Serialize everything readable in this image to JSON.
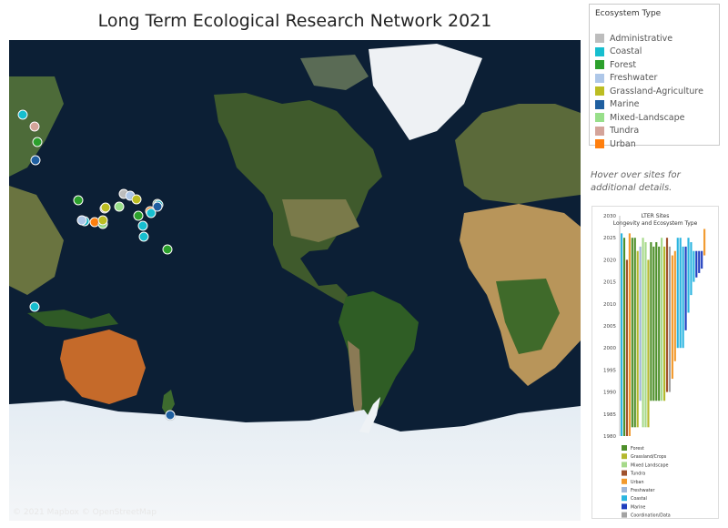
{
  "title": "Long Term Ecological Research Network 2021",
  "map": {
    "attribution": "© 2021 Mapbox © OpenStreetMap",
    "sites": [
      {
        "lat": 71.2,
        "lon": -156.8,
        "type": "Coastal"
      },
      {
        "lat": 68.6,
        "lon": -149.6,
        "type": "Tundra"
      },
      {
        "lat": 64.9,
        "lon": -148.0,
        "type": "Forest"
      },
      {
        "lat": 59.5,
        "lon": -149.0,
        "type": "Marine"
      },
      {
        "lat": 44.2,
        "lon": -122.2,
        "type": "Forest"
      },
      {
        "lat": 47.0,
        "lon": -93.5,
        "type": "Administrative"
      },
      {
        "lat": 46.0,
        "lon": -89.7,
        "type": "Freshwater"
      },
      {
        "lat": 44.5,
        "lon": -85.4,
        "type": "Grassland-Agriculture"
      },
      {
        "lat": 42.5,
        "lon": -72.2,
        "type": "Forest"
      },
      {
        "lat": 42.0,
        "lon": -71.5,
        "type": "Coastal"
      },
      {
        "lat": 41.0,
        "lon": -72.0,
        "type": "Marine"
      },
      {
        "lat": 39.1,
        "lon": -76.6,
        "type": "Urban"
      },
      {
        "lat": 37.9,
        "lon": -76.5,
        "type": "Coastal"
      },
      {
        "lat": 40.2,
        "lon": -105.5,
        "type": "Tundra"
      },
      {
        "lat": 41.0,
        "lon": -96.5,
        "type": "Mixed-Landscape"
      },
      {
        "lat": 40.8,
        "lon": -104.8,
        "type": "Grassland-Agriculture"
      },
      {
        "lat": 36.5,
        "lon": -84.0,
        "type": "Forest"
      },
      {
        "lat": 34.0,
        "lon": -118.0,
        "type": "Coastal"
      },
      {
        "lat": 34.5,
        "lon": -120.0,
        "type": "Freshwater"
      },
      {
        "lat": 33.4,
        "lon": -112.0,
        "type": "Urban"
      },
      {
        "lat": 32.6,
        "lon": -106.7,
        "type": "Mixed-Landscape"
      },
      {
        "lat": 34.3,
        "lon": -106.8,
        "type": "Grassland-Agriculture"
      },
      {
        "lat": 31.4,
        "lon": -81.3,
        "type": "Coastal"
      },
      {
        "lat": 25.5,
        "lon": -80.7,
        "type": "Coastal"
      },
      {
        "lat": 18.3,
        "lon": -65.8,
        "type": "Forest"
      },
      {
        "lat": -17.5,
        "lon": -149.8,
        "type": "Coastal"
      },
      {
        "lat": -64.8,
        "lon": -64.1,
        "type": "Marine"
      }
    ]
  },
  "legend": {
    "title": "Ecosystem Type",
    "items": [
      {
        "label": "Administrative",
        "color": "#bdbdbd"
      },
      {
        "label": "Coastal",
        "color": "#17becf"
      },
      {
        "label": "Forest",
        "color": "#2ca02c"
      },
      {
        "label": "Freshwater",
        "color": "#aec7e8"
      },
      {
        "label": "Grassland-Agriculture",
        "color": "#bcbd22"
      },
      {
        "label": "Marine",
        "color": "#1f5fa0"
      },
      {
        "label": "Mixed-Landscape",
        "color": "#98df8a"
      },
      {
        "label": "Tundra",
        "color": "#d4a49a"
      },
      {
        "label": "Urban",
        "color": "#ff7f0e"
      }
    ]
  },
  "hover_note": "Hover over sites for additional details.",
  "inset_chart": {
    "title": "LTER Sites",
    "subtitle": "Longevity and Ecosystem Type",
    "y_ticks": [
      "2030",
      "2025",
      "2020",
      "2015",
      "2010",
      "2005",
      "2000",
      "1995",
      "1990",
      "1985",
      "1980"
    ],
    "ylim": [
      1980,
      2030
    ],
    "legend": [
      {
        "label": "Forest",
        "color": "#4e8f2a"
      },
      {
        "label": "Grassland/Crops",
        "color": "#b5b82e"
      },
      {
        "label": "Mixed Landscape",
        "color": "#a6d98a"
      },
      {
        "label": "Tundra",
        "color": "#a0522d"
      },
      {
        "label": "Urban",
        "color": "#f29a2e"
      },
      {
        "label": "Freshwater",
        "color": "#9fb7d9"
      },
      {
        "label": "Coastal",
        "color": "#2bb5e0"
      },
      {
        "label": "Marine",
        "color": "#1f3fbf"
      },
      {
        "label": "Coordination/Data",
        "color": "#a3a3a3"
      }
    ],
    "bars": [
      {
        "start": 1980,
        "end": 2026,
        "color": "#2bb5e0"
      },
      {
        "start": 1980,
        "end": 2025,
        "color": "#4e8f2a"
      },
      {
        "start": 1980,
        "end": 2020,
        "color": "#a0522d"
      },
      {
        "start": 1980,
        "end": 2026,
        "color": "#f29a2e"
      },
      {
        "start": 1982,
        "end": 2025,
        "color": "#4e8f2a"
      },
      {
        "start": 1982,
        "end": 2025,
        "color": "#4e8f2a"
      },
      {
        "start": 1982,
        "end": 2022,
        "color": "#b5b82e"
      },
      {
        "start": 1988,
        "end": 2023,
        "color": "#9fb7d9"
      },
      {
        "start": 1982,
        "end": 2025,
        "color": "#a6d98a"
      },
      {
        "start": 1982,
        "end": 2024,
        "color": "#a6d98a"
      },
      {
        "start": 1982,
        "end": 2020,
        "color": "#b5b82e"
      },
      {
        "start": 1988,
        "end": 2024,
        "color": "#4e8f2a"
      },
      {
        "start": 1988,
        "end": 2023,
        "color": "#4e8f2a"
      },
      {
        "start": 1988,
        "end": 2024,
        "color": "#4e8f2a"
      },
      {
        "start": 1988,
        "end": 2023,
        "color": "#4e8f2a"
      },
      {
        "start": 1988,
        "end": 2025,
        "color": "#a6d98a"
      },
      {
        "start": 1988,
        "end": 2023,
        "color": "#b5b82e"
      },
      {
        "start": 1990,
        "end": 2025,
        "color": "#a0522d"
      },
      {
        "start": 1990,
        "end": 2023,
        "color": "#a3a3a3"
      },
      {
        "start": 1993,
        "end": 2021,
        "color": "#f29a2e"
      },
      {
        "start": 1997,
        "end": 2022,
        "color": "#f29a2e"
      },
      {
        "start": 2000,
        "end": 2025,
        "color": "#2bb5e0"
      },
      {
        "start": 2000,
        "end": 2025,
        "color": "#2bb5e0"
      },
      {
        "start": 2000,
        "end": 2023,
        "color": "#2bb5e0"
      },
      {
        "start": 2004,
        "end": 2023,
        "color": "#1f3fbf"
      },
      {
        "start": 2008,
        "end": 2025,
        "color": "#2bb5e0"
      },
      {
        "start": 2012,
        "end": 2024,
        "color": "#2bb5e0"
      },
      {
        "start": 2015,
        "end": 2022,
        "color": "#2bb5e0"
      },
      {
        "start": 2016,
        "end": 2022,
        "color": "#1f3fbf"
      },
      {
        "start": 2017,
        "end": 2022,
        "color": "#1f3fbf"
      },
      {
        "start": 2018,
        "end": 2022,
        "color": "#1f3fbf"
      },
      {
        "start": 2021,
        "end": 2027,
        "color": "#f29a2e"
      }
    ]
  }
}
